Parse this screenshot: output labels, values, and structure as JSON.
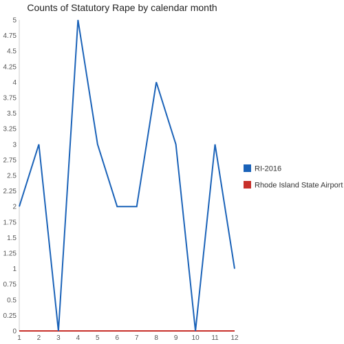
{
  "chart_data": {
    "type": "line",
    "title": "Counts of Statutory Rape by calendar month",
    "xlabel": "",
    "ylabel": "",
    "x": [
      1,
      2,
      3,
      4,
      5,
      6,
      7,
      8,
      9,
      10,
      11,
      12
    ],
    "ylim": [
      0,
      5
    ],
    "y_ticks": [
      "0",
      "0.25",
      "0.5",
      "0.75",
      "1",
      "1.25",
      "1.5",
      "1.75",
      "2",
      "2.25",
      "2.5",
      "2.75",
      "3",
      "3.25",
      "3.5",
      "3.75",
      "4",
      "4.25",
      "4.5",
      "4.75",
      "5"
    ],
    "x_ticks": [
      "1",
      "2",
      "3",
      "4",
      "5",
      "6",
      "7",
      "8",
      "9",
      "10",
      "11",
      "12"
    ],
    "grid": false,
    "legend_position": "right",
    "series": [
      {
        "name": "RI-2016",
        "color": "#1a62b8",
        "values": [
          2,
          3,
          0,
          5,
          3,
          2,
          2,
          4,
          3,
          0,
          3,
          1
        ]
      },
      {
        "name": "Rhode Island State Airport",
        "color": "#c8302a",
        "values": [
          0,
          0,
          0,
          0,
          0,
          0,
          0,
          0,
          0,
          0,
          0,
          0
        ]
      }
    ]
  }
}
